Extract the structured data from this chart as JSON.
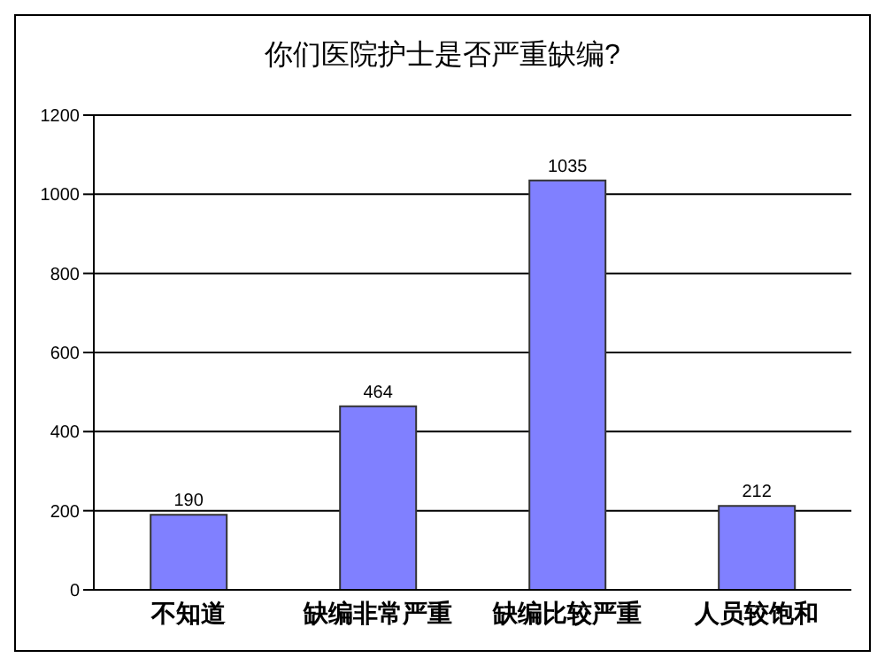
{
  "chart_data": {
    "type": "bar",
    "title": "你们医院护士是否严重缺编?",
    "categories": [
      "不知道",
      "缺编非常严重",
      "缺编比较严重",
      "人员较饱和"
    ],
    "values": [
      190,
      464,
      1035,
      212
    ],
    "color": "#8080ff",
    "ylim": [
      0,
      1200
    ],
    "yticks": [
      0,
      200,
      400,
      600,
      800,
      1000,
      1200
    ],
    "grid": "y",
    "data_labels": true
  }
}
